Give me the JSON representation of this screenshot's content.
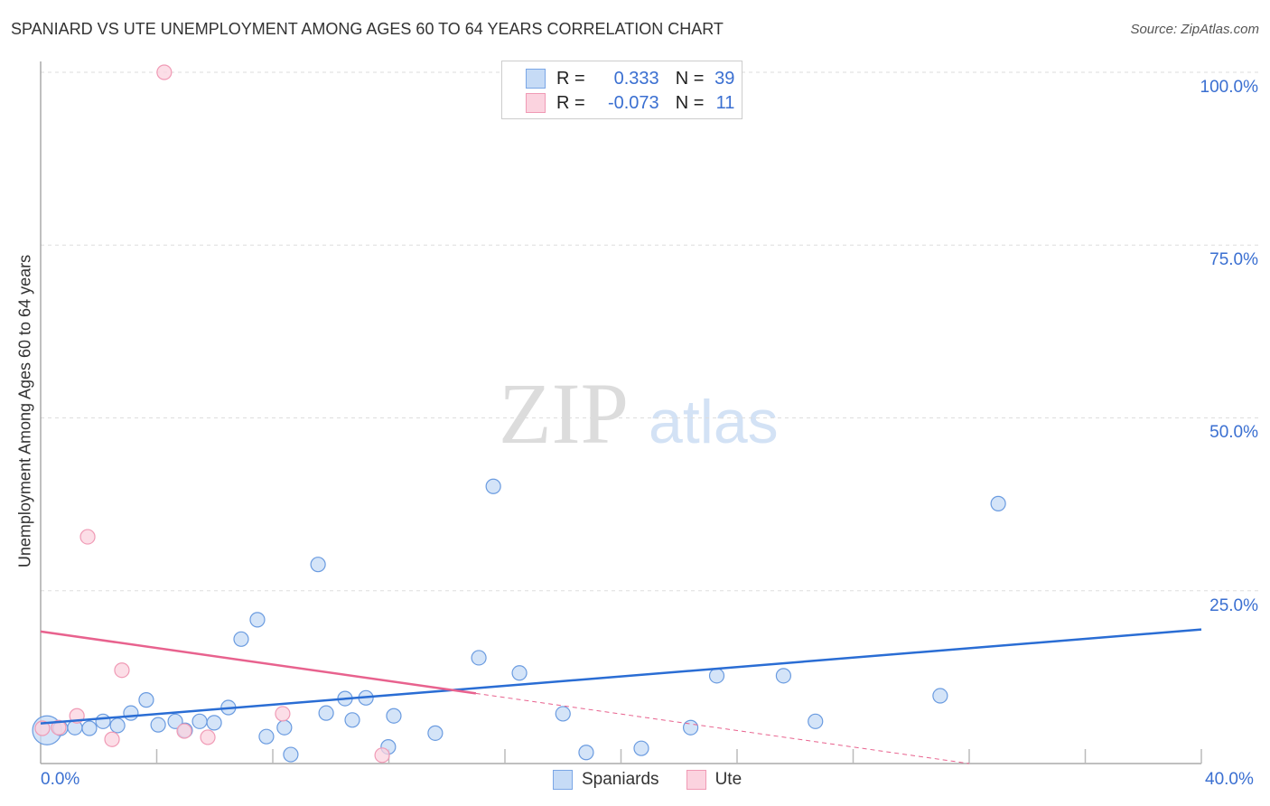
{
  "title": "SPANIARD VS UTE UNEMPLOYMENT AMONG AGES 60 TO 64 YEARS CORRELATION CHART",
  "source": "Source: ZipAtlas.com",
  "watermark": "ZIPatlas",
  "legend": {
    "rows": [
      {
        "r_label": "R =",
        "r": "0.333",
        "n_label": "N =",
        "n": "39",
        "color": "#a8c8f0"
      },
      {
        "r_label": "R =",
        "r": "-0.073",
        "n_label": "N =",
        "n": "11",
        "color": "#f7bccd"
      }
    ]
  },
  "chart_data": {
    "type": "scatter",
    "title": "SPANIARD VS UTE UNEMPLOYMENT AMONG AGES 60 TO 64 YEARS CORRELATION CHART",
    "xlabel": "",
    "ylabel": "Unemployment Among Ages 60 to 64 years",
    "xlim": [
      0,
      40
    ],
    "ylim": [
      0,
      100
    ],
    "x_tick_labels": [
      "0.0%",
      "40.0%"
    ],
    "y_tick_labels": [
      "25.0%",
      "50.0%",
      "75.0%",
      "100.0%"
    ],
    "y_ticks": [
      25,
      50,
      75,
      100
    ],
    "grid": true,
    "legend_position": "bottom-center",
    "series": [
      {
        "name": "Spaniards",
        "color": "#6a9be0",
        "fill": "#c6dbf6",
        "line_color": "#2a6dd4",
        "trend": [
          [
            0,
            5.8
          ],
          [
            40,
            19.4
          ]
        ],
        "trend_solid_until": 40,
        "points": [
          [
            0.22,
            4.8,
            "big"
          ],
          [
            0.68,
            5.1
          ],
          [
            1.18,
            5.2
          ],
          [
            1.68,
            5.1
          ],
          [
            2.15,
            6.1
          ],
          [
            2.65,
            5.5
          ],
          [
            3.11,
            7.3
          ],
          [
            3.64,
            9.2
          ],
          [
            4.05,
            5.6
          ],
          [
            4.64,
            6.1
          ],
          [
            4.98,
            4.8
          ],
          [
            5.48,
            6.1
          ],
          [
            5.98,
            5.9
          ],
          [
            6.47,
            8.1
          ],
          [
            6.91,
            18.0
          ],
          [
            7.47,
            20.8
          ],
          [
            7.78,
            3.9
          ],
          [
            8.4,
            5.2
          ],
          [
            8.62,
            1.3
          ],
          [
            9.56,
            28.8
          ],
          [
            9.84,
            7.3
          ],
          [
            10.49,
            9.4
          ],
          [
            10.74,
            6.3
          ],
          [
            11.21,
            9.5
          ],
          [
            12.17,
            6.9
          ],
          [
            11.98,
            2.4
          ],
          [
            13.6,
            4.4
          ],
          [
            15.1,
            15.3
          ],
          [
            15.6,
            40.1
          ],
          [
            16.5,
            13.1
          ],
          [
            18.0,
            7.2
          ],
          [
            18.8,
            1.6
          ],
          [
            20.7,
            2.2
          ],
          [
            22.4,
            5.2
          ],
          [
            23.3,
            12.7
          ],
          [
            25.6,
            12.7
          ],
          [
            26.7,
            6.1
          ],
          [
            31.0,
            9.8
          ],
          [
            33.0,
            37.6
          ]
        ]
      },
      {
        "name": "Ute",
        "color": "#f09ab5",
        "fill": "#fbd3df",
        "line_color": "#e8628e",
        "trend": [
          [
            0,
            19.1
          ],
          [
            32,
            0
          ]
        ],
        "trend_solid_until": 15,
        "points": [
          [
            0.06,
            5.1
          ],
          [
            0.62,
            5.2
          ],
          [
            1.25,
            6.9
          ],
          [
            1.62,
            32.8
          ],
          [
            2.46,
            3.5
          ],
          [
            2.8,
            13.5
          ],
          [
            4.26,
            100
          ],
          [
            4.95,
            4.7
          ],
          [
            5.76,
            3.8
          ],
          [
            8.34,
            7.2
          ],
          [
            11.77,
            1.2
          ]
        ]
      }
    ]
  }
}
